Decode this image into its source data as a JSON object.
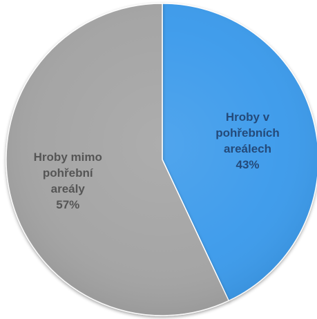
{
  "chart_data": {
    "type": "pie",
    "title": "",
    "start_angle_deg": 0,
    "direction": "clockwise",
    "slices": [
      {
        "label_lines": [
          "Hroby v",
          "pohřebních",
          "areálech"
        ],
        "value": 43,
        "value_label": "43%",
        "color": "#3D9BEB",
        "label_color": "#244A7A"
      },
      {
        "label_lines": [
          "Hroby mimo",
          "pohřební",
          "areály"
        ],
        "value": 57,
        "value_label": "57%",
        "color": "#A4A4A4",
        "label_color": "#555555"
      }
    ],
    "legend": "none",
    "data_labels": "inside"
  }
}
